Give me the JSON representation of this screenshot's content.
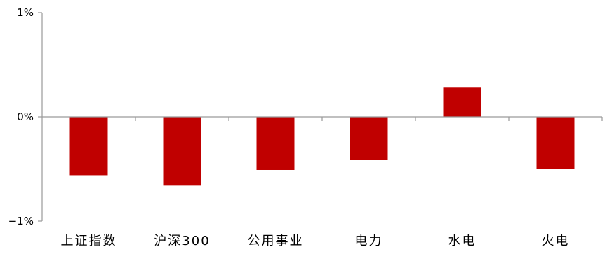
{
  "chart_data": {
    "type": "bar",
    "categories": [
      "上证指数",
      "沪深300",
      "公用事业",
      "电力",
      "水电",
      "火电"
    ],
    "values": [
      -0.56,
      -0.66,
      -0.51,
      -0.41,
      0.28,
      -0.5
    ],
    "ylim": [
      -1,
      1
    ],
    "yticks": [
      1,
      0,
      -1
    ],
    "ytick_labels": [
      "1%",
      "0%",
      "−1%"
    ],
    "grid": false,
    "legend": "none",
    "colors": {
      "bar": "#C00000",
      "axis": "#9a9a9a"
    }
  }
}
